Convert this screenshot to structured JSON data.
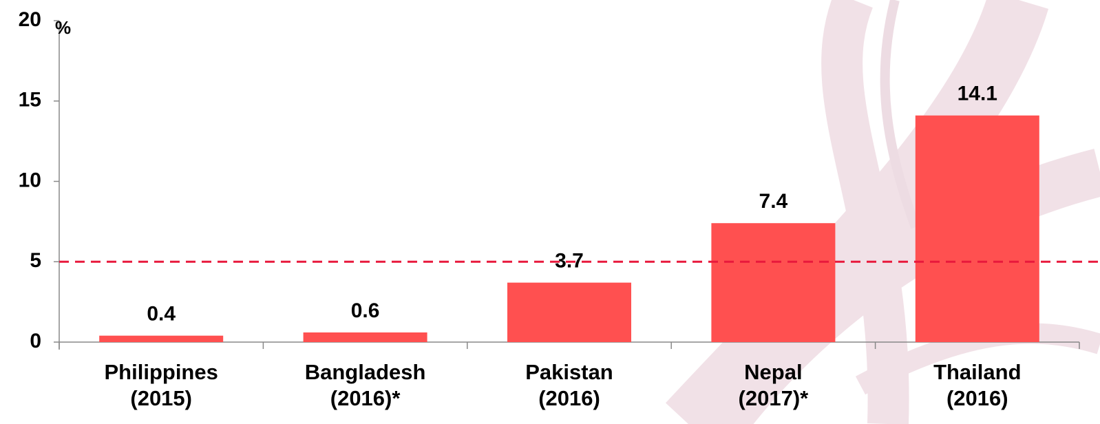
{
  "chart_data": {
    "type": "bar",
    "y_unit": "%",
    "categories": [
      "Philippines\n(2015)",
      "Bangladesh\n(2016)*",
      "Pakistan\n(2016)",
      "Nepal\n(2017)*",
      "Thailand\n(2016)"
    ],
    "values": [
      0.4,
      0.6,
      3.7,
      7.4,
      14.1
    ],
    "color": "#ff5050",
    "ylim": [
      0,
      20
    ],
    "yticks": [
      0,
      5,
      10,
      15,
      20
    ],
    "reference_line": {
      "value": 5,
      "color": "#e8193c"
    },
    "show_value_labels": true
  }
}
